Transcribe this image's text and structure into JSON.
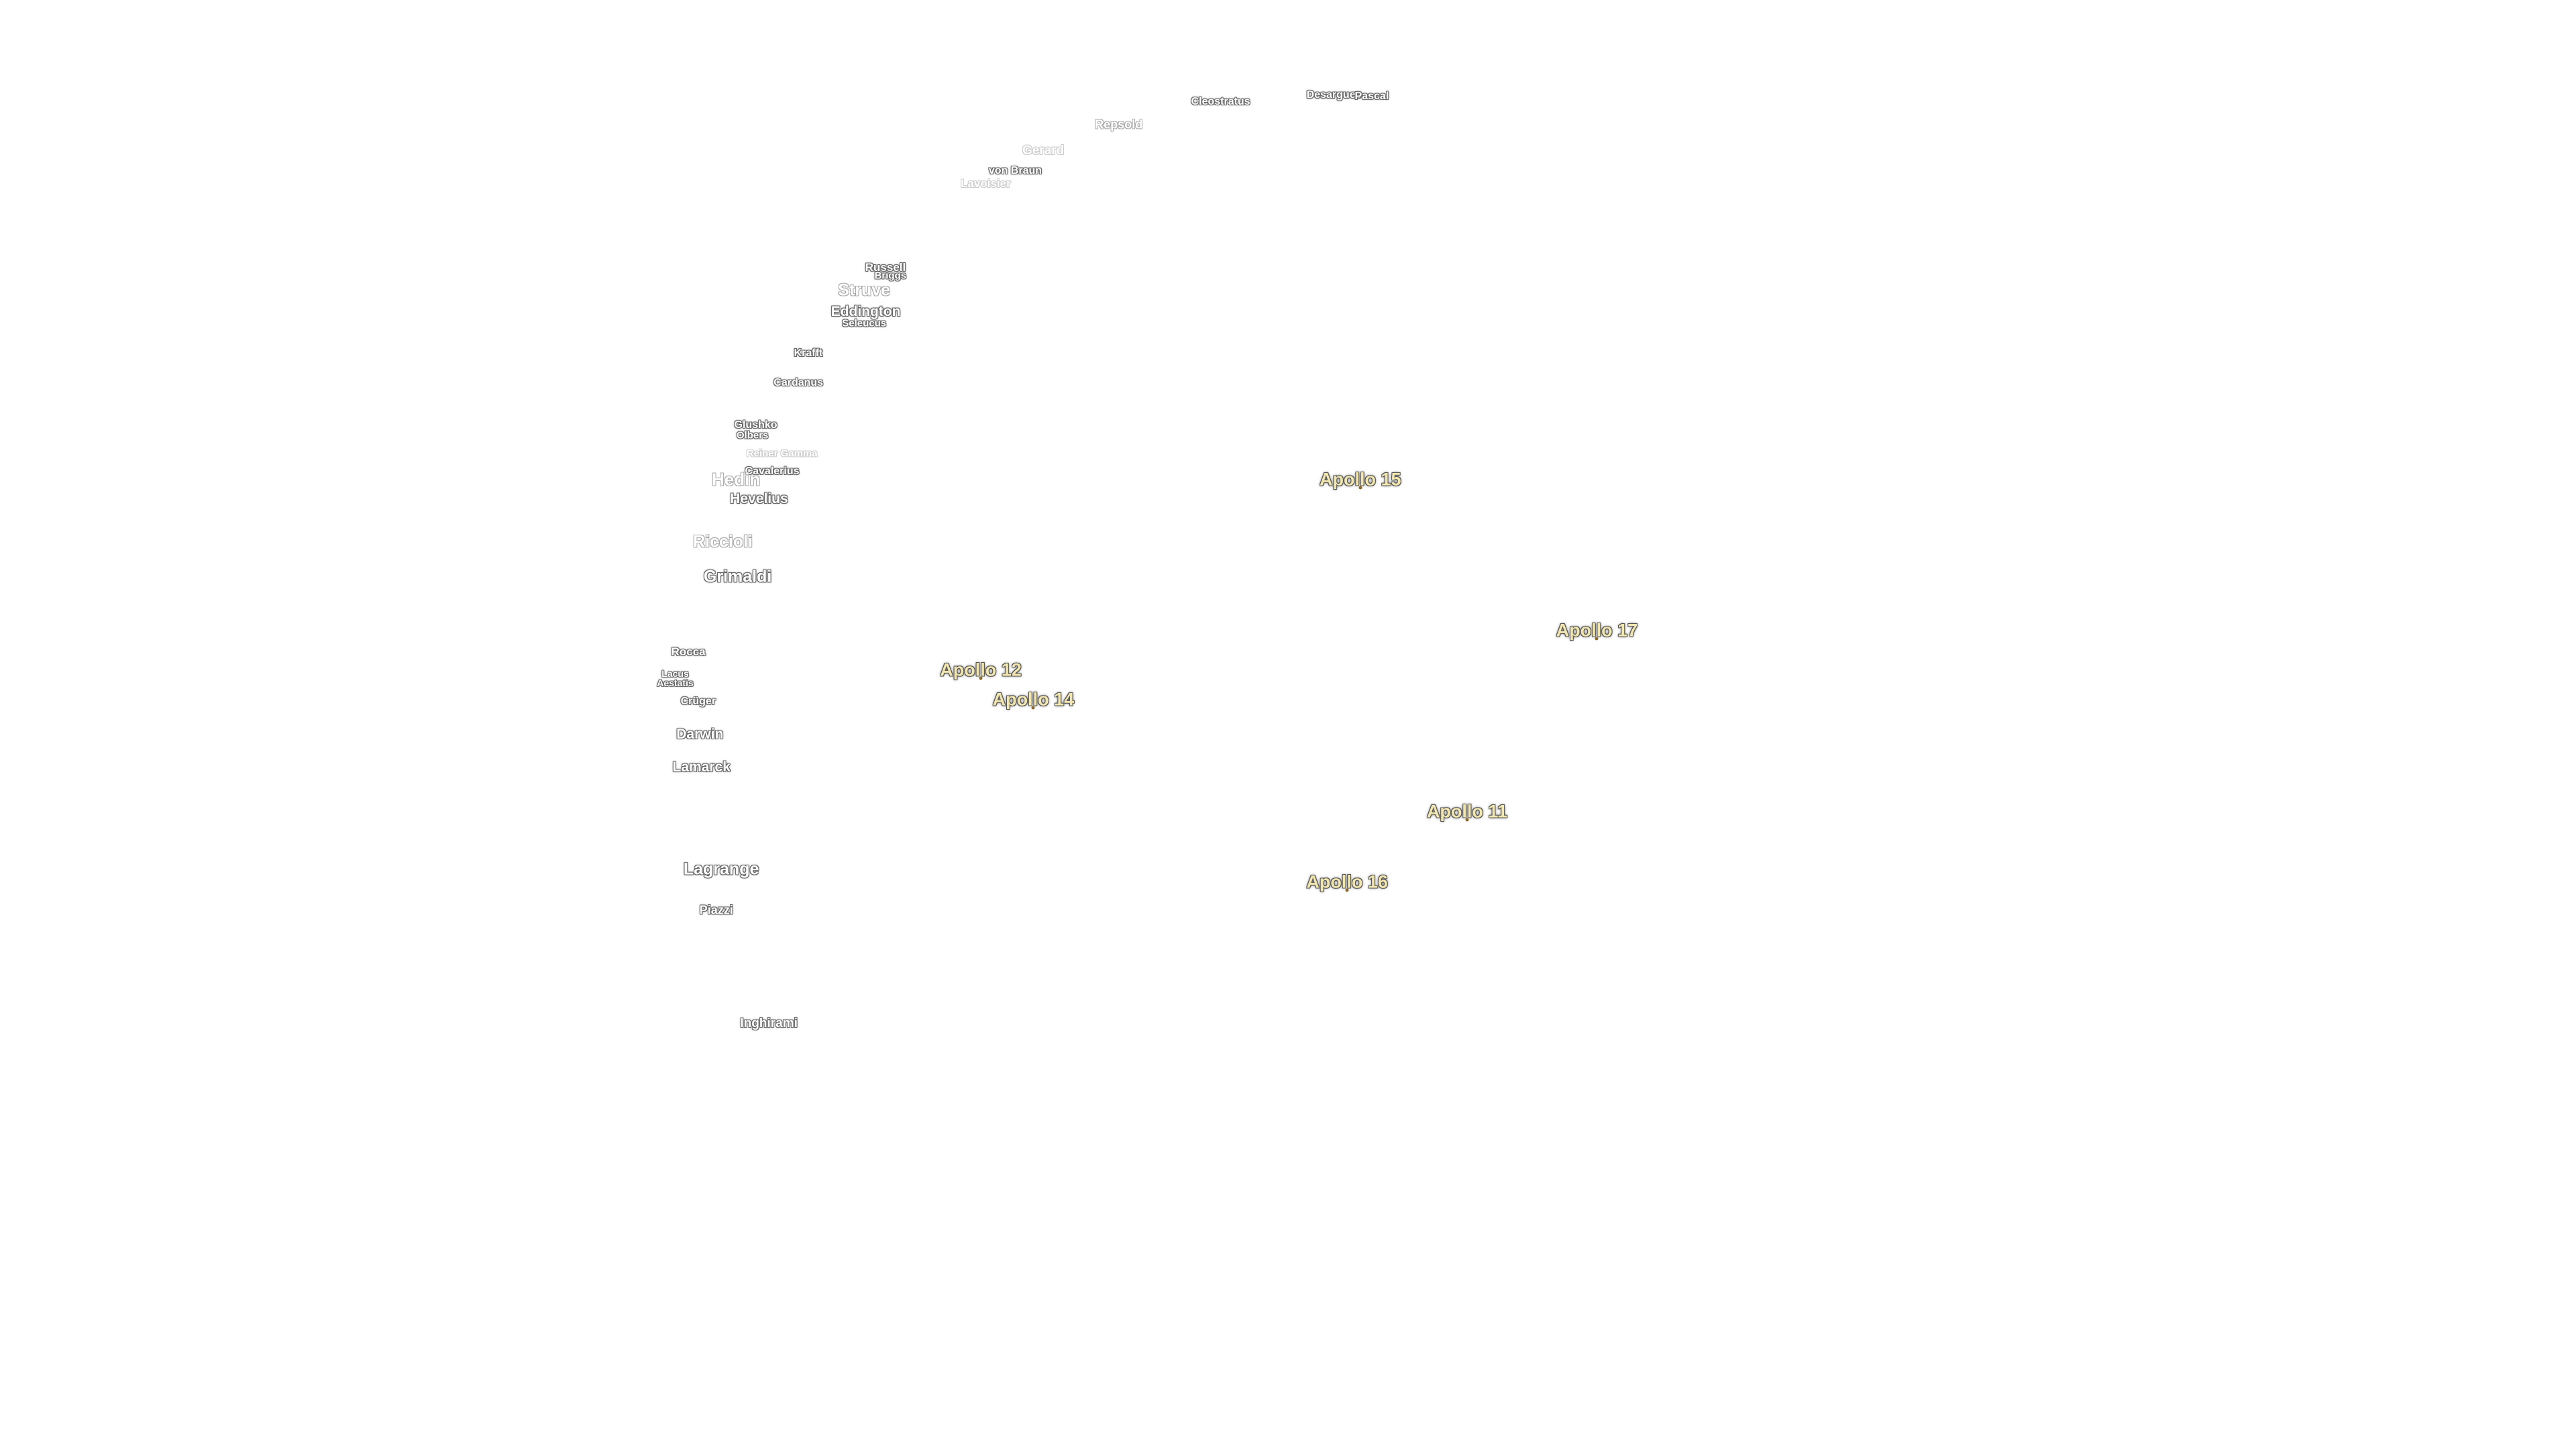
{
  "labels": [
    "Cleostratus",
    "Desargues",
    "Pascal",
    "Repsold",
    "Gerard",
    "von Braun",
    "Lavoisier",
    "Russell",
    "Briggs",
    "Struve",
    "Eddington",
    "Seleucus",
    "Krafft",
    "Cardanus",
    "Glushko",
    "Olbers",
    "Reiner Gamma",
    "Cavalerius",
    "Hedin",
    "Hevelius",
    "Riccioli",
    "Grimaldi",
    "Rocca",
    "Lacus Aestatis",
    "Crüger",
    "Darwin",
    "Lamarck",
    "Lagrange",
    "Piazzi",
    "Inghirami"
  ],
  "apollo_sites": [
    "Apollo 15",
    "Apollo 17",
    "Apollo 12",
    "Apollo 14",
    "Apollo 11",
    "Apollo 16"
  ]
}
